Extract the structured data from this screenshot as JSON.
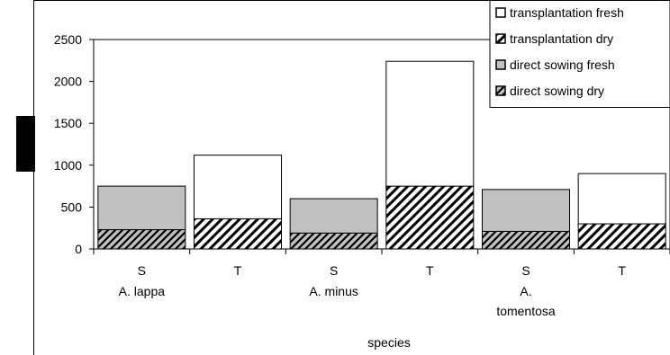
{
  "chart_data": {
    "type": "bar",
    "stacked": true,
    "title": "",
    "xlabel": "species",
    "ylabel": "",
    "ylim": [
      0,
      2500
    ],
    "yticks": [
      0,
      500,
      1000,
      1500,
      2000,
      2500
    ],
    "grid": false,
    "legend_position": "top-right",
    "categories": [
      {
        "method": "S",
        "species": "A. lappa"
      },
      {
        "method": "T",
        "species": ""
      },
      {
        "method": "S",
        "species": "A. minus"
      },
      {
        "method": "T",
        "species": ""
      },
      {
        "method": "S",
        "species": "A. tomentosa"
      },
      {
        "method": "T",
        "species": ""
      }
    ],
    "series": [
      {
        "name": "direct sowing dry",
        "pattern": "hatch-gray",
        "values": [
          230,
          null,
          190,
          null,
          210,
          null
        ]
      },
      {
        "name": "direct sowing fresh",
        "pattern": "solid-gray",
        "values": [
          520,
          null,
          410,
          null,
          500,
          null
        ]
      },
      {
        "name": "transplantation dry",
        "pattern": "hatch-white",
        "values": [
          null,
          360,
          null,
          750,
          null,
          300
        ]
      },
      {
        "name": "transplantation fresh",
        "pattern": "solid-white",
        "values": [
          null,
          760,
          null,
          1490,
          null,
          600
        ]
      }
    ],
    "legend_order": [
      "transplantation fresh",
      "transplantation dry",
      "direct sowing fresh",
      "direct sowing dry"
    ],
    "colors": {
      "gray": "#c0c0c0",
      "white": "#ffffff",
      "line": "#000000",
      "redaction": "#000000"
    }
  }
}
